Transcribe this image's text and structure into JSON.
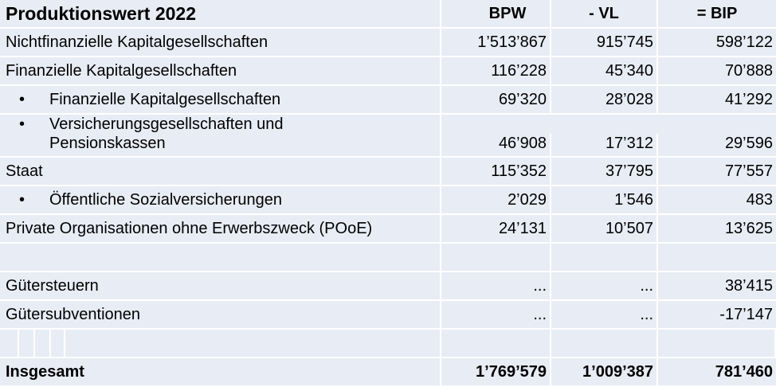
{
  "header": {
    "title": "Produktionswert 2022",
    "col_bpw": "BPW",
    "col_vl": "- VL",
    "col_bip": "= BIP"
  },
  "rows": [
    {
      "label": "Nichtfinanzielle Kapitalgesellschaften",
      "bpw": "1’513’867",
      "vl": "915’745",
      "bip": "598’122"
    },
    {
      "label": "Finanzielle Kapitalgesellschaften",
      "bpw": "116’228",
      "vl": "45’340",
      "bip": "70’888"
    },
    {
      "bullet": "•",
      "label": "Finanzielle Kapitalgesellschaften",
      "bpw": "69’320",
      "vl": "28’028",
      "bip": "41’292"
    },
    {
      "bullet": "•",
      "label_line1": "Versicherungsgesellschaften und",
      "label_line2": "Pensionskassen",
      "bpw": "46’908",
      "vl": "17’312",
      "bip": "29’596"
    },
    {
      "label": "Staat",
      "bpw": "115’352",
      "vl": "37’795",
      "bip": "77’557"
    },
    {
      "bullet": "•",
      "label": "Öffentliche Sozialversicherungen",
      "bpw": "2’029",
      "vl": "1’546",
      "bip": "483"
    },
    {
      "label": "Private Organisationen ohne Erwerbszweck (POoE)",
      "bpw": "24’131",
      "vl": "10’507",
      "bip": "13’625"
    },
    {
      "label": "Gütersteuern",
      "bpw": "...",
      "vl": "...",
      "bip": "38’415"
    },
    {
      "label": "Gütersubventionen",
      "bpw": "...",
      "vl": "...",
      "bip": "-17’147"
    }
  ],
  "total": {
    "label": "Insgesamt",
    "bpw": "1’769’579",
    "vl": "1’009’387",
    "bip": "781’460"
  }
}
